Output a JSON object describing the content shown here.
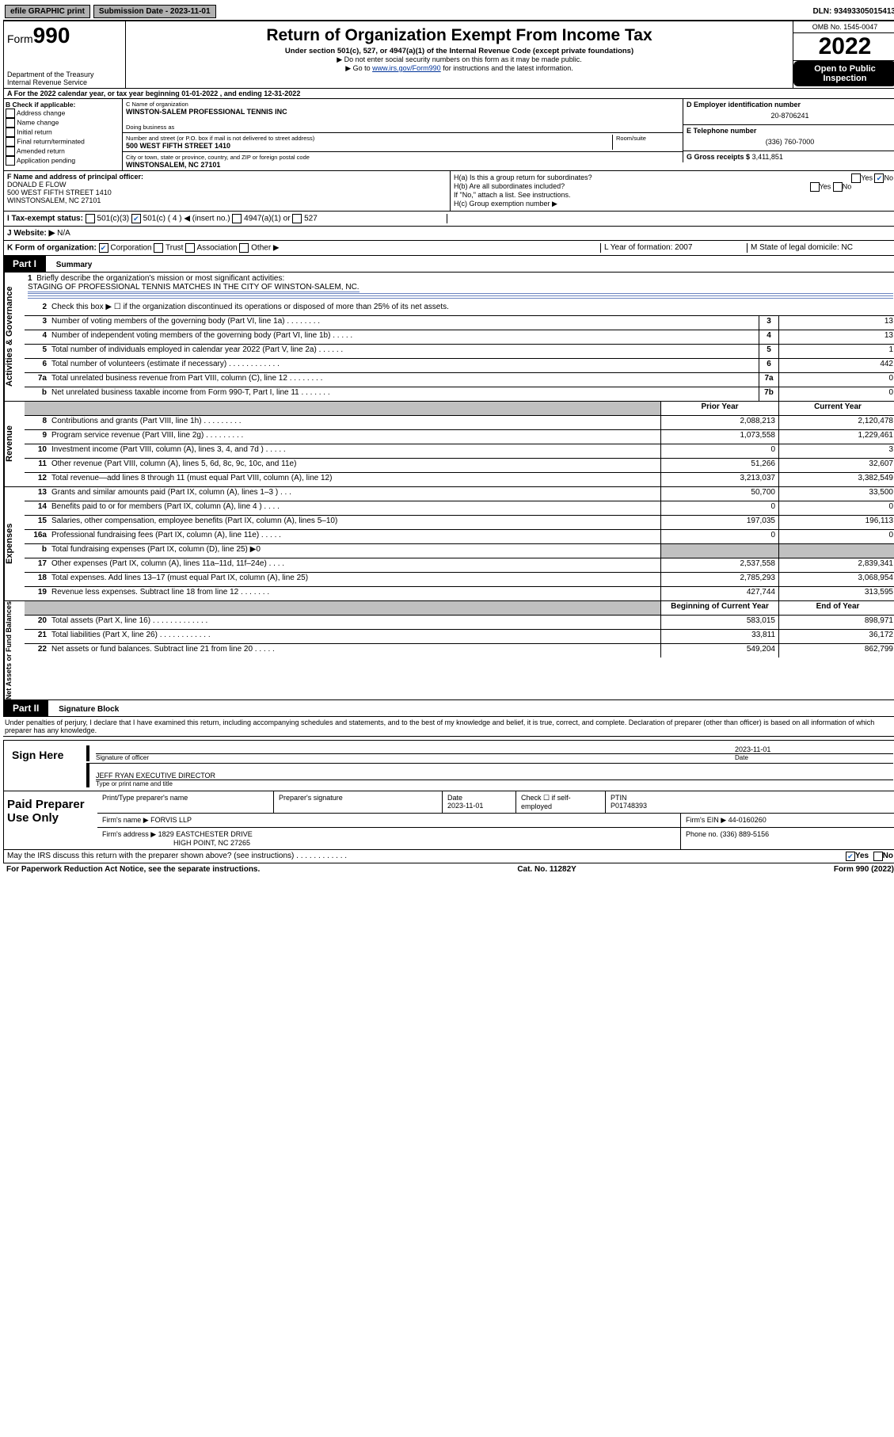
{
  "topbar": {
    "efile": "efile GRAPHIC print",
    "submission_label": "Submission Date - 2023-11-01",
    "dln": "DLN: 93493305015413"
  },
  "header": {
    "form_word": "Form",
    "form_num": "990",
    "dept": "Department of the Treasury",
    "irs": "Internal Revenue Service",
    "title": "Return of Organization Exempt From Income Tax",
    "subtitle": "Under section 501(c), 527, or 4947(a)(1) of the Internal Revenue Code (except private foundations)",
    "note1": "▶ Do not enter social security numbers on this form as it may be made public.",
    "note2_pre": "▶ Go to ",
    "note2_link": "www.irs.gov/Form990",
    "note2_post": " for instructions and the latest information.",
    "omb": "OMB No. 1545-0047",
    "year": "2022",
    "open": "Open to Public Inspection"
  },
  "rowA": "A For the 2022 calendar year, or tax year beginning 01-01-2022   , and ending 12-31-2022",
  "colB": {
    "title": "B Check if applicable:",
    "items": [
      "Address change",
      "Name change",
      "Initial return",
      "Final return/terminated",
      "Amended return",
      "Application pending"
    ]
  },
  "colC": {
    "name_label": "C Name of organization",
    "name": "WINSTON-SALEM PROFESSIONAL TENNIS INC",
    "dba": "Doing business as",
    "street_label": "Number and street (or P.O. box if mail is not delivered to street address)",
    "room": "Room/suite",
    "street": "500 WEST FIFTH STREET 1410",
    "city_label": "City or town, state or province, country, and ZIP or foreign postal code",
    "city": "WINSTONSALEM, NC  27101"
  },
  "colD": {
    "ein_label": "D Employer identification number",
    "ein": "20-8706241",
    "tel_label": "E Telephone number",
    "tel": "(336) 760-7000",
    "gross_label": "G Gross receipts $",
    "gross": "3,411,851"
  },
  "rowF": {
    "label": "F  Name and address of principal officer:",
    "name": "DONALD E FLOW",
    "street": "500 WEST FIFTH STREET 1410",
    "city": "WINSTONSALEM, NC  27101"
  },
  "rowH": {
    "ha": "H(a)  Is this a group return for subordinates?",
    "hb": "H(b)  Are all subordinates included?",
    "hb_note": "If \"No,\" attach a list. See instructions.",
    "hc": "H(c)  Group exemption number ▶"
  },
  "rowI": {
    "label": "I   Tax-exempt status:",
    "c3": "501(c)(3)",
    "c": "501(c) ( 4 ) ◀ (insert no.)",
    "c4947": "4947(a)(1) or",
    "c527": "527"
  },
  "rowJ": {
    "label": "J   Website: ▶",
    "val": "N/A"
  },
  "rowK": {
    "label": "K Form of organization:",
    "corp": "Corporation",
    "trust": "Trust",
    "assoc": "Association",
    "other": "Other ▶",
    "l": "L Year of formation: 2007",
    "m": "M State of legal domicile: NC"
  },
  "part1": {
    "hdr": "Part I",
    "title": "Summary"
  },
  "mission": {
    "num": "1",
    "label": "Briefly describe the organization's mission or most significant activities:",
    "text": "STAGING OF PROFESSIONAL TENNIS MATCHES IN THE CITY OF WINSTON-SALEM, NC."
  },
  "line2": "Check this box ▶ ☐  if the organization discontinued its operations or disposed of more than 25% of its net assets.",
  "gov_lines": [
    {
      "n": "3",
      "d": "Number of voting members of the governing body (Part VI, line 1a)   .    .    .    .    .    .    .    .",
      "b": "3",
      "v": "13"
    },
    {
      "n": "4",
      "d": "Number of independent voting members of the governing body (Part VI, line 1b)   .    .    .    .    .",
      "b": "4",
      "v": "13"
    },
    {
      "n": "5",
      "d": "Total number of individuals employed in calendar year 2022 (Part V, line 2a)   .    .    .    .    .    .",
      "b": "5",
      "v": "1"
    },
    {
      "n": "6",
      "d": "Total number of volunteers (estimate if necessary)   .    .    .    .    .    .    .    .    .    .    .    .",
      "b": "6",
      "v": "442"
    },
    {
      "n": "7a",
      "d": "Total unrelated business revenue from Part VIII, column (C), line 12   .    .    .    .    .    .    .    .",
      "b": "7a",
      "v": "0"
    },
    {
      "n": "b",
      "d": "Net unrelated business taxable income from Form 990-T, Part I, line 11   .    .    .    .    .    .    .",
      "b": "7b",
      "v": "0"
    }
  ],
  "two_col_hdr": {
    "prior": "Prior Year",
    "current": "Current Year"
  },
  "revenue": [
    {
      "n": "8",
      "d": "Contributions and grants (Part VIII, line 1h)   .    .    .    .    .    .    .    .    .",
      "p": "2,088,213",
      "c": "2,120,478"
    },
    {
      "n": "9",
      "d": "Program service revenue (Part VIII, line 2g)   .    .    .    .    .    .    .    .    .",
      "p": "1,073,558",
      "c": "1,229,461"
    },
    {
      "n": "10",
      "d": "Investment income (Part VIII, column (A), lines 3, 4, and 7d )   .    .    .    .    .",
      "p": "0",
      "c": "3"
    },
    {
      "n": "11",
      "d": "Other revenue (Part VIII, column (A), lines 5, 6d, 8c, 9c, 10c, and 11e)",
      "p": "51,266",
      "c": "32,607"
    },
    {
      "n": "12",
      "d": "Total revenue—add lines 8 through 11 (must equal Part VIII, column (A), line 12)",
      "p": "3,213,037",
      "c": "3,382,549"
    }
  ],
  "expenses": [
    {
      "n": "13",
      "d": "Grants and similar amounts paid (Part IX, column (A), lines 1–3 )   .    .    .",
      "p": "50,700",
      "c": "33,500"
    },
    {
      "n": "14",
      "d": "Benefits paid to or for members (Part IX, column (A), line 4 )   .    .    .    .",
      "p": "0",
      "c": "0"
    },
    {
      "n": "15",
      "d": "Salaries, other compensation, employee benefits (Part IX, column (A), lines 5–10)",
      "p": "197,035",
      "c": "196,113"
    },
    {
      "n": "16a",
      "d": "Professional fundraising fees (Part IX, column (A), line 11e)   .    .    .    .    .",
      "p": "0",
      "c": "0"
    },
    {
      "n": "b",
      "d": "Total fundraising expenses (Part IX, column (D), line 25) ▶0",
      "p": "gray",
      "c": "gray"
    },
    {
      "n": "17",
      "d": "Other expenses (Part IX, column (A), lines 11a–11d, 11f–24e)   .    .    .    .",
      "p": "2,537,558",
      "c": "2,839,341"
    },
    {
      "n": "18",
      "d": "Total expenses. Add lines 13–17 (must equal Part IX, column (A), line 25)",
      "p": "2,785,293",
      "c": "3,068,954"
    },
    {
      "n": "19",
      "d": "Revenue less expenses. Subtract line 18 from line 12   .    .    .    .    .    .    .",
      "p": "427,744",
      "c": "313,595"
    }
  ],
  "net_hdr": {
    "b": "Beginning of Current Year",
    "e": "End of Year"
  },
  "net": [
    {
      "n": "20",
      "d": "Total assets (Part X, line 16)   .    .    .    .    .    .    .    .    .    .    .    .    .",
      "p": "583,015",
      "c": "898,971"
    },
    {
      "n": "21",
      "d": "Total liabilities (Part X, line 26)   .    .    .    .    .    .    .    .    .    .    .    .",
      "p": "33,811",
      "c": "36,172"
    },
    {
      "n": "22",
      "d": "Net assets or fund balances. Subtract line 21 from line 20   .    .    .    .    .",
      "p": "549,204",
      "c": "862,799"
    }
  ],
  "part2": {
    "hdr": "Part II",
    "title": "Signature Block"
  },
  "penalty": "Under penalties of perjury, I declare that I have examined this return, including accompanying schedules and statements, and to the best of my knowledge and belief, it is true, correct, and complete. Declaration of preparer (other than officer) is based on all information of which preparer has any knowledge.",
  "sign": {
    "here": "Sign Here",
    "sig": "Signature of officer",
    "date_label": "Date",
    "date": "2023-11-01",
    "name": "JEFF RYAN  EXECUTIVE DIRECTOR",
    "type": "Type or print name and title"
  },
  "prep": {
    "title": "Paid Preparer Use Only",
    "h1": "Print/Type preparer's name",
    "h2": "Preparer's signature",
    "h3": "Date",
    "h3v": "2023-11-01",
    "chk": "Check ☐  if self-employed",
    "ptin": "PTIN",
    "ptinv": "P01748393",
    "firm": "Firm's name     ▶",
    "firmv": "FORVIS LLP",
    "ein": "Firm's EIN ▶",
    "einv": "44-0160260",
    "addr": "Firm's address ▶",
    "addrv1": "1829 EASTCHESTER DRIVE",
    "addrv2": "HIGH POINT, NC 27265",
    "phone": "Phone no. (336) 889-5156"
  },
  "mayirs": "May the IRS discuss this return with the preparer shown above? (see instructions)   .    .    .    .    .    .    .    .    .    .    .    .",
  "yes": "Yes",
  "no": "No",
  "footer": {
    "l": "For Paperwork Reduction Act Notice, see the separate instructions.",
    "m": "Cat. No. 11282Y",
    "r": "Form 990 (2022)"
  }
}
